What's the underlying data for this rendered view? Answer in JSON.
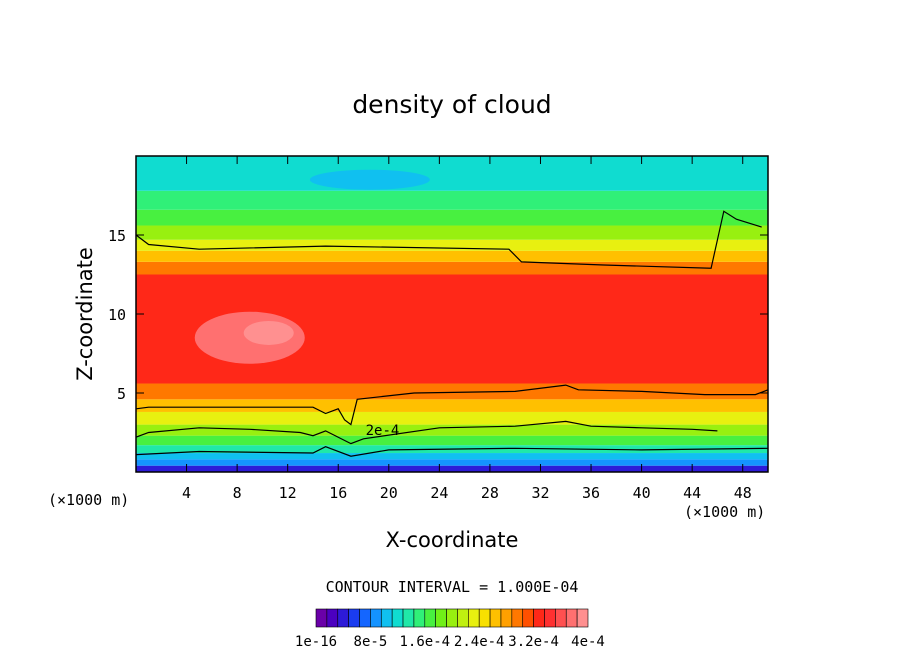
{
  "chart_data": {
    "type": "heatmap",
    "title": "density of cloud",
    "xlabel": "X-coordinate",
    "ylabel": "Z-coordinate",
    "x_unit": "(×1000 m)",
    "y_unit": "(×1000 m)",
    "xlim": [
      0,
      50
    ],
    "ylim": [
      0,
      20
    ],
    "x_ticks": [
      4,
      8,
      12,
      16,
      20,
      24,
      28,
      32,
      36,
      40,
      44,
      48
    ],
    "y_ticks": [
      5,
      10,
      15
    ],
    "contour_interval_text": "CONTOUR INTERVAL = 1.000E-04",
    "contour_label": "2e-4",
    "colorbar": {
      "min": 1e-16,
      "max": 0.0004,
      "tick_labels": [
        "1e-16",
        "8e-5",
        "1.6e-4",
        "2.4e-4",
        "3.2e-4",
        "4e-4"
      ],
      "colors": [
        "#6a00a8",
        "#4b00c0",
        "#2d1ad8",
        "#1a3cf0",
        "#1466ff",
        "#1493ff",
        "#10c0f0",
        "#10dcd0",
        "#20e8a8",
        "#30f078",
        "#48f040",
        "#70f018",
        "#98f010",
        "#c0f010",
        "#e8f010",
        "#f8e000",
        "#ffc000",
        "#ffa000",
        "#ff7800",
        "#ff5000",
        "#ff2818",
        "#ff3030",
        "#ff5050",
        "#ff7070",
        "#ff9090"
      ]
    },
    "field_bands": [
      {
        "z_from": 0.0,
        "z_to": 0.4,
        "density": 4e-05
      },
      {
        "z_from": 0.4,
        "z_to": 0.8,
        "density": 8e-05
      },
      {
        "z_from": 0.8,
        "z_to": 1.2,
        "density": 0.00011
      },
      {
        "z_from": 1.2,
        "z_to": 1.7,
        "density": 0.00014
      },
      {
        "z_from": 1.7,
        "z_to": 2.3,
        "density": 0.00017
      },
      {
        "z_from": 2.3,
        "z_to": 3.0,
        "density": 0.0002
      },
      {
        "z_from": 3.0,
        "z_to": 3.8,
        "density": 0.00023
      },
      {
        "z_from": 3.8,
        "z_to": 4.6,
        "density": 0.00026
      },
      {
        "z_from": 4.6,
        "z_to": 5.6,
        "density": 0.00029
      },
      {
        "z_from": 5.6,
        "z_to": 12.5,
        "density": 0.00032
      },
      {
        "z_from": 12.5,
        "z_to": 13.3,
        "density": 0.00029
      },
      {
        "z_from": 13.3,
        "z_to": 14.0,
        "density": 0.00026
      },
      {
        "z_from": 14.0,
        "z_to": 14.7,
        "density": 0.00023
      },
      {
        "z_from": 14.7,
        "z_to": 15.6,
        "density": 0.0002
      },
      {
        "z_from": 15.6,
        "z_to": 16.6,
        "density": 0.000175
      },
      {
        "z_from": 16.6,
        "z_to": 17.8,
        "density": 0.00015
      },
      {
        "z_from": 17.8,
        "z_to": 20.0,
        "density": 0.000125
      }
    ],
    "peak_regions": [
      {
        "x_center": 9,
        "z_center": 8.5,
        "density": 0.00037
      },
      {
        "x_center": 10.5,
        "z_center": 8.8,
        "density": 0.0004
      },
      {
        "x_center": 18.5,
        "z_center": 18.5,
        "density": 0.0001
      }
    ],
    "contour_lines": [
      {
        "level": 0.0002,
        "points": [
          [
            0,
            15
          ],
          [
            1,
            14.4
          ],
          [
            5,
            14.1
          ],
          [
            15,
            14.3
          ],
          [
            29.5,
            14.1
          ],
          [
            30.5,
            13.3
          ],
          [
            37,
            13.1
          ],
          [
            45.5,
            12.9
          ],
          [
            46.5,
            16.5
          ],
          [
            47.5,
            16.0
          ],
          [
            49.5,
            15.5
          ]
        ]
      },
      {
        "level": 0.0002,
        "points": [
          [
            0,
            4
          ],
          [
            1,
            4.1
          ],
          [
            14,
            4.1
          ],
          [
            15,
            3.7
          ],
          [
            16,
            4.0
          ],
          [
            16.5,
            3.3
          ],
          [
            17,
            3.0
          ],
          [
            17.5,
            4.6
          ],
          [
            22,
            5.0
          ],
          [
            30,
            5.1
          ],
          [
            34,
            5.5
          ],
          [
            35,
            5.2
          ],
          [
            40,
            5.1
          ],
          [
            45,
            4.9
          ],
          [
            49,
            4.9
          ],
          [
            50,
            5.2
          ]
        ]
      },
      {
        "level": 0.0002,
        "points": [
          [
            0,
            2.2
          ],
          [
            1,
            2.5
          ],
          [
            5,
            2.8
          ],
          [
            9,
            2.7
          ],
          [
            13,
            2.5
          ],
          [
            14,
            2.3
          ],
          [
            15,
            2.6
          ],
          [
            17,
            1.8
          ],
          [
            18,
            2.1
          ],
          [
            24,
            2.8
          ],
          [
            30,
            2.9
          ],
          [
            34,
            3.2
          ],
          [
            36,
            2.9
          ],
          [
            40,
            2.8
          ],
          [
            44,
            2.7
          ],
          [
            46,
            2.6
          ]
        ]
      },
      {
        "level": 0.0001,
        "points": [
          [
            0,
            1.1
          ],
          [
            5,
            1.3
          ],
          [
            14,
            1.2
          ],
          [
            15,
            1.6
          ],
          [
            17,
            1.0
          ],
          [
            20,
            1.4
          ],
          [
            30,
            1.5
          ],
          [
            40,
            1.4
          ],
          [
            50,
            1.5
          ]
        ]
      }
    ]
  }
}
